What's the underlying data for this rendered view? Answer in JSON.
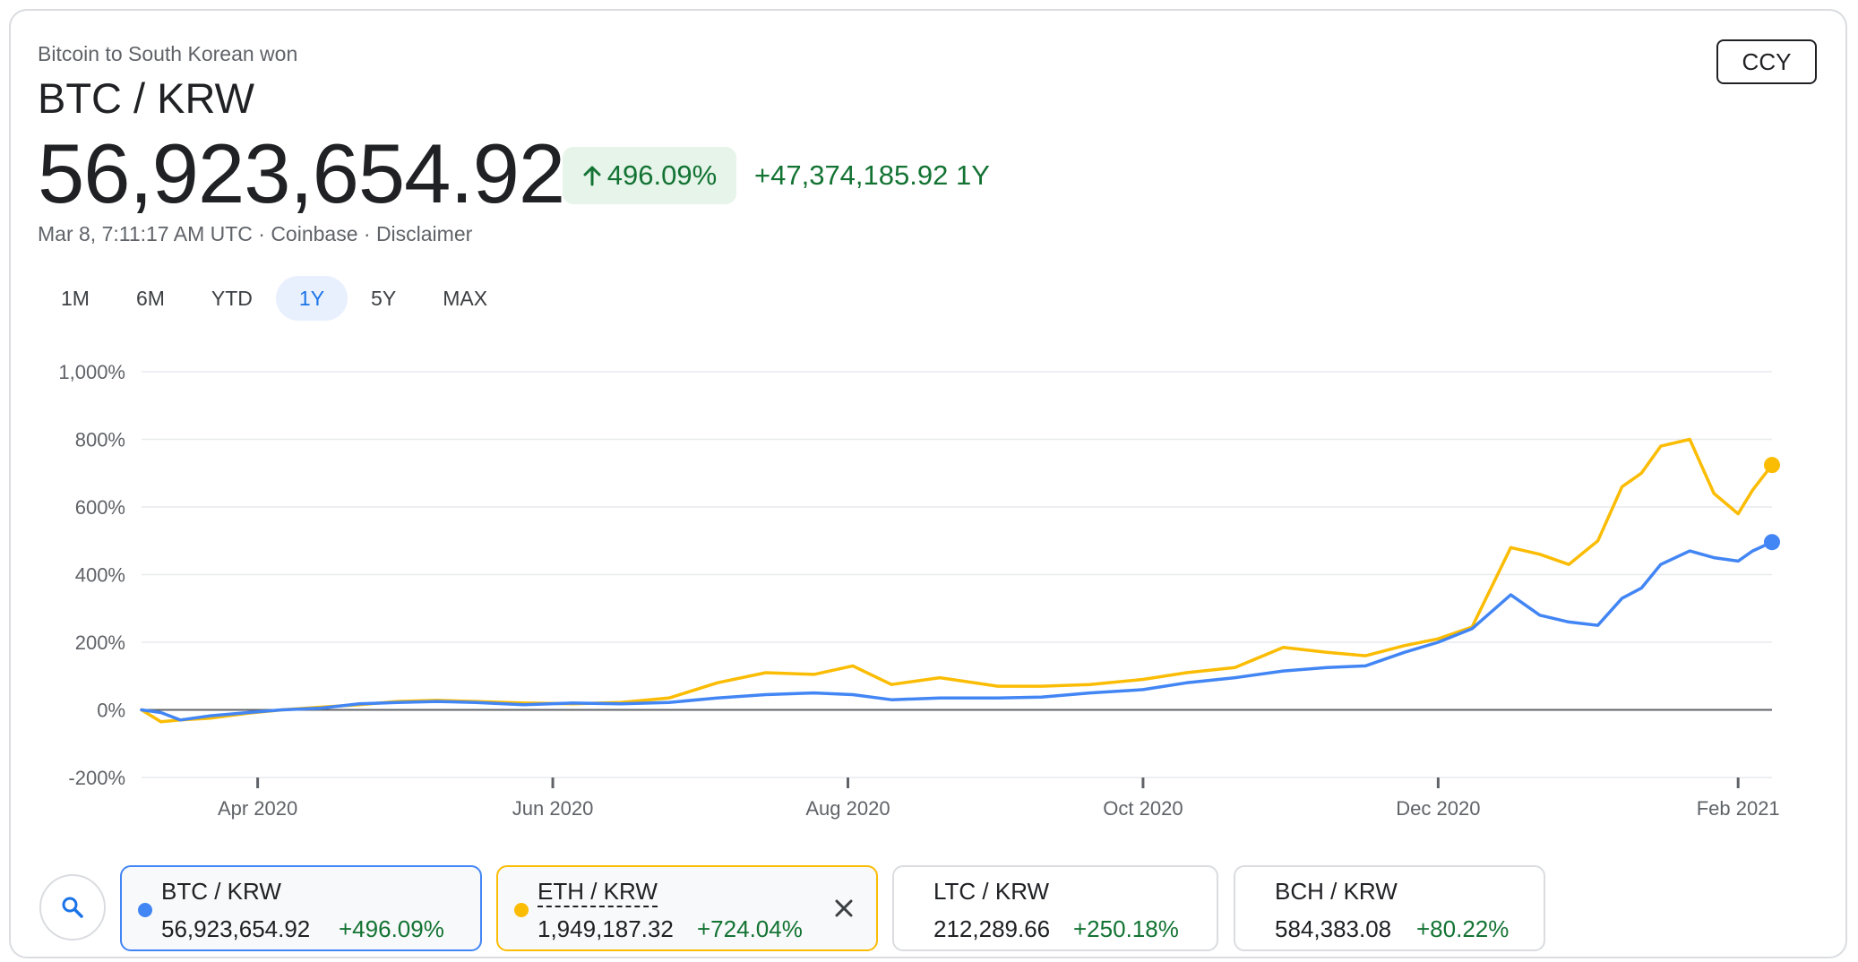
{
  "header": {
    "subtitle": "Bitcoin to South Korean won",
    "pair": "BTC / KRW",
    "price": "56,923,654.92",
    "change_pct": "496.09%",
    "change_abs": "+47,374,185.92 1Y",
    "meta": "Mar 8, 7:11:17 AM UTC · Coinbase · Disclaimer",
    "ccy_label": "CCY"
  },
  "ranges": [
    {
      "label": "1M",
      "active": false
    },
    {
      "label": "6M",
      "active": false
    },
    {
      "label": "YTD",
      "active": false
    },
    {
      "label": "1Y",
      "active": true
    },
    {
      "label": "5Y",
      "active": false
    },
    {
      "label": "MAX",
      "active": false
    }
  ],
  "colors": {
    "btc": "#4285f4",
    "eth": "#fbbc04",
    "positive": "#137333",
    "grid": "#e8eaed",
    "zero_line": "#5f6368"
  },
  "chart_data": {
    "type": "line",
    "ylabel": "",
    "xlabel": "",
    "ylim": [
      -200,
      1000
    ],
    "y_ticks": [
      1000,
      800,
      600,
      400,
      200,
      0,
      -200
    ],
    "y_tick_labels": [
      "1,000%",
      "800%",
      "600%",
      "400%",
      "200%",
      "0%",
      "-200%"
    ],
    "x_ticks": [
      "2020-04-01",
      "2020-06-01",
      "2020-08-01",
      "2020-10-01",
      "2020-12-01",
      "2021-02-01"
    ],
    "x_tick_labels": [
      "Apr 2020",
      "Jun 2020",
      "Aug 2020",
      "Oct 2020",
      "Dec 2020",
      "Feb 2021"
    ],
    "x_range": [
      "2020-03-08",
      "2021-02-08"
    ],
    "grid": true,
    "series": [
      {
        "name": "BTC / KRW",
        "color": "#4285f4",
        "x": [
          "2020-03-08",
          "2020-03-12",
          "2020-03-16",
          "2020-03-22",
          "2020-03-30",
          "2020-04-06",
          "2020-04-14",
          "2020-04-22",
          "2020-04-30",
          "2020-05-08",
          "2020-05-16",
          "2020-05-26",
          "2020-06-05",
          "2020-06-15",
          "2020-06-25",
          "2020-07-05",
          "2020-07-15",
          "2020-07-25",
          "2020-08-02",
          "2020-08-10",
          "2020-08-20",
          "2020-09-01",
          "2020-09-10",
          "2020-09-20",
          "2020-10-01",
          "2020-10-10",
          "2020-10-20",
          "2020-10-30",
          "2020-11-08",
          "2020-11-16",
          "2020-11-24",
          "2020-12-01",
          "2020-12-08",
          "2020-12-16",
          "2020-12-22",
          "2020-12-28",
          "2021-01-03",
          "2021-01-08",
          "2021-01-12",
          "2021-01-16",
          "2021-01-22",
          "2021-01-27",
          "2021-02-01",
          "2021-02-04",
          "2021-02-08"
        ],
        "y": [
          0,
          -8,
          -30,
          -18,
          -8,
          0,
          5,
          18,
          22,
          25,
          22,
          15,
          20,
          18,
          22,
          35,
          45,
          50,
          45,
          30,
          35,
          35,
          38,
          50,
          60,
          80,
          95,
          115,
          125,
          130,
          170,
          200,
          240,
          340,
          280,
          260,
          250,
          330,
          360,
          430,
          470,
          450,
          440,
          470,
          496.09
        ]
      },
      {
        "name": "ETH / KRW",
        "color": "#fbbc04",
        "x": [
          "2020-03-08",
          "2020-03-12",
          "2020-03-16",
          "2020-03-22",
          "2020-03-30",
          "2020-04-06",
          "2020-04-14",
          "2020-04-22",
          "2020-04-30",
          "2020-05-08",
          "2020-05-16",
          "2020-05-26",
          "2020-06-05",
          "2020-06-15",
          "2020-06-25",
          "2020-07-05",
          "2020-07-15",
          "2020-07-25",
          "2020-08-02",
          "2020-08-10",
          "2020-08-20",
          "2020-09-01",
          "2020-09-10",
          "2020-09-20",
          "2020-10-01",
          "2020-10-10",
          "2020-10-20",
          "2020-10-30",
          "2020-11-08",
          "2020-11-16",
          "2020-11-24",
          "2020-12-01",
          "2020-12-08",
          "2020-12-16",
          "2020-12-22",
          "2020-12-28",
          "2021-01-03",
          "2021-01-08",
          "2021-01-12",
          "2021-01-16",
          "2021-01-22",
          "2021-01-27",
          "2021-02-01",
          "2021-02-04",
          "2021-02-08"
        ],
        "y": [
          0,
          -35,
          -30,
          -25,
          -10,
          0,
          8,
          15,
          25,
          28,
          25,
          20,
          18,
          22,
          35,
          80,
          110,
          105,
          130,
          75,
          95,
          70,
          70,
          75,
          90,
          110,
          125,
          185,
          170,
          160,
          190,
          210,
          245,
          480,
          460,
          430,
          500,
          660,
          700,
          780,
          800,
          640,
          580,
          650,
          724.04
        ]
      }
    ]
  },
  "compare": [
    {
      "name": "BTC / KRW",
      "value": "56,923,654.92",
      "pct": "+496.09%"
    },
    {
      "name": "ETH / KRW",
      "value": "1,949,187.32",
      "pct": "+724.04%"
    },
    {
      "name": "LTC / KRW",
      "value": "212,289.66",
      "pct": "+250.18%"
    },
    {
      "name": "BCH / KRW",
      "value": "584,383.08",
      "pct": "+80.22%"
    }
  ]
}
